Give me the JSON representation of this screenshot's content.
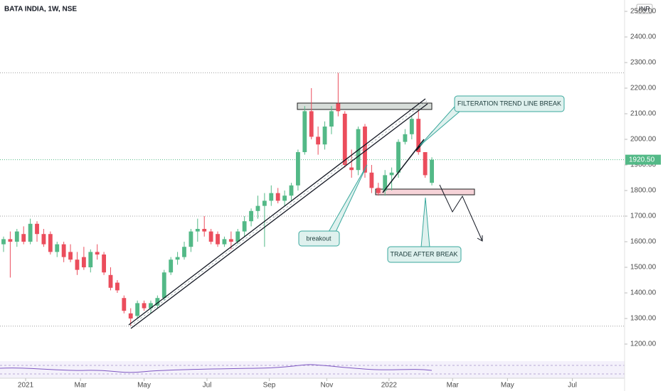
{
  "chart_data": {
    "type": "candlestick",
    "title": "BATA INDIA, 1W, NSE",
    "currency": "INR",
    "up_color": "#53b987",
    "down_color": "#eb4d5c",
    "x": [
      0,
      1,
      2,
      3,
      4,
      5,
      6,
      7,
      8,
      9,
      10,
      11,
      12,
      13,
      14,
      15,
      16,
      17,
      18,
      19,
      20,
      21,
      22,
      23,
      24,
      25,
      26,
      27,
      28,
      29,
      30,
      31,
      32,
      33,
      34,
      35,
      36,
      37,
      38,
      39,
      40,
      41,
      42,
      43,
      44,
      45,
      46,
      47,
      48,
      49,
      50,
      51,
      52,
      53,
      54,
      55,
      56,
      57,
      58,
      59,
      60,
      61,
      62,
      63,
      64
    ],
    "open": [
      1590,
      1610,
      1600,
      1630,
      1600,
      1670,
      1630,
      1630,
      1560,
      1590,
      1560,
      1530,
      1540,
      1500,
      1560,
      1550,
      1470,
      1440,
      1380,
      1320,
      1310,
      1360,
      1340,
      1350,
      1380,
      1480,
      1530,
      1540,
      1580,
      1640,
      1650,
      1640,
      1630,
      1590,
      1610,
      1600,
      1640,
      1680,
      1720,
      1740,
      1760,
      1790,
      1760,
      1780,
      1820,
      1950,
      2110,
      2010,
      1980,
      2050,
      2140,
      2100,
      1890,
      1880,
      2050,
      1870,
      1810,
      1800,
      1860,
      1870,
      1990,
      2020,
      2080,
      1950,
      1830
    ],
    "high": [
      1620,
      1640,
      1650,
      1660,
      1690,
      1680,
      1650,
      1640,
      1600,
      1600,
      1590,
      1560,
      1580,
      1570,
      1590,
      1560,
      1500,
      1450,
      1390,
      1340,
      1370,
      1370,
      1370,
      1390,
      1490,
      1540,
      1560,
      1600,
      1650,
      1690,
      1700,
      1650,
      1640,
      1620,
      1640,
      1650,
      1700,
      1730,
      1780,
      1790,
      1820,
      1810,
      1800,
      1830,
      1960,
      2130,
      2200,
      2050,
      2070,
      2130,
      2260,
      2110,
      1960,
      2050,
      2060,
      1900,
      1830,
      1880,
      1890,
      2000,
      2040,
      2090,
      2110,
      1950,
      1930
    ],
    "low": [
      1560,
      1460,
      1580,
      1590,
      1590,
      1600,
      1580,
      1550,
      1540,
      1520,
      1520,
      1470,
      1490,
      1480,
      1530,
      1470,
      1410,
      1400,
      1320,
      1270,
      1300,
      1330,
      1320,
      1340,
      1370,
      1470,
      1510,
      1530,
      1560,
      1600,
      1620,
      1590,
      1580,
      1580,
      1570,
      1590,
      1620,
      1660,
      1690,
      1580,
      1740,
      1750,
      1740,
      1760,
      1800,
      1940,
      2000,
      1940,
      1960,
      2020,
      2090,
      1890,
      1850,
      1860,
      1850,
      1790,
      1780,
      1780,
      1800,
      1850,
      1980,
      2000,
      1940,
      1850,
      1820
    ],
    "close": [
      1610,
      1600,
      1640,
      1600,
      1670,
      1630,
      1590,
      1560,
      1590,
      1540,
      1530,
      1490,
      1500,
      1560,
      1550,
      1480,
      1420,
      1410,
      1330,
      1300,
      1360,
      1340,
      1360,
      1380,
      1480,
      1530,
      1540,
      1580,
      1640,
      1650,
      1640,
      1600,
      1590,
      1610,
      1600,
      1640,
      1680,
      1720,
      1740,
      1760,
      1790,
      1760,
      1780,
      1820,
      1950,
      2110,
      2010,
      1980,
      2050,
      2110,
      2110,
      1900,
      1880,
      2040,
      1870,
      1810,
      1790,
      1860,
      1870,
      1990,
      2020,
      2080,
      1950,
      1860,
      1920.5
    ],
    "current_price": {
      "value": 1920.5,
      "label": "1920.50"
    },
    "horizontal_levels": [
      2260,
      1700,
      1270
    ],
    "xlim": [
      -0.53,
      92.8
    ],
    "xticks": [
      {
        "value": 3.3,
        "label": "2021"
      },
      {
        "value": 11.5,
        "label": "Mar"
      },
      {
        "value": 21.0,
        "label": "May"
      },
      {
        "value": 30.4,
        "label": "Jul"
      },
      {
        "value": 39.7,
        "label": "Sep"
      },
      {
        "value": 48.3,
        "label": "Nov"
      },
      {
        "value": 57.6,
        "label": "2022"
      },
      {
        "value": 67.1,
        "label": "Mar"
      },
      {
        "value": 75.3,
        "label": "May"
      },
      {
        "value": 85.0,
        "label": "Jul"
      }
    ],
    "ylim": [
      1141.7,
      2544.4
    ],
    "yticks": [
      {
        "value": 1200,
        "label": "1200.00"
      },
      {
        "value": 1300,
        "label": "1300.00"
      },
      {
        "value": 1400,
        "label": "1400.00"
      },
      {
        "value": 1500,
        "label": "1500.00"
      },
      {
        "value": 1600,
        "label": "1600.00"
      },
      {
        "value": 1700,
        "label": "1700.00"
      },
      {
        "value": 1800,
        "label": "1800.00"
      },
      {
        "value": 1900,
        "label": "1900.00"
      },
      {
        "value": 2000,
        "label": "2000.00"
      },
      {
        "value": 2100,
        "label": "2100.00"
      },
      {
        "value": 2200,
        "label": "2200.00"
      },
      {
        "value": 2300,
        "label": "2300.00"
      },
      {
        "value": 2400,
        "label": "2400.00"
      },
      {
        "value": 2500,
        "label": "2500.00"
      }
    ],
    "annotations": [
      "FILTERATION TREND LINE BREAK",
      "breakout",
      "TRADE AFTER BREAK"
    ]
  }
}
